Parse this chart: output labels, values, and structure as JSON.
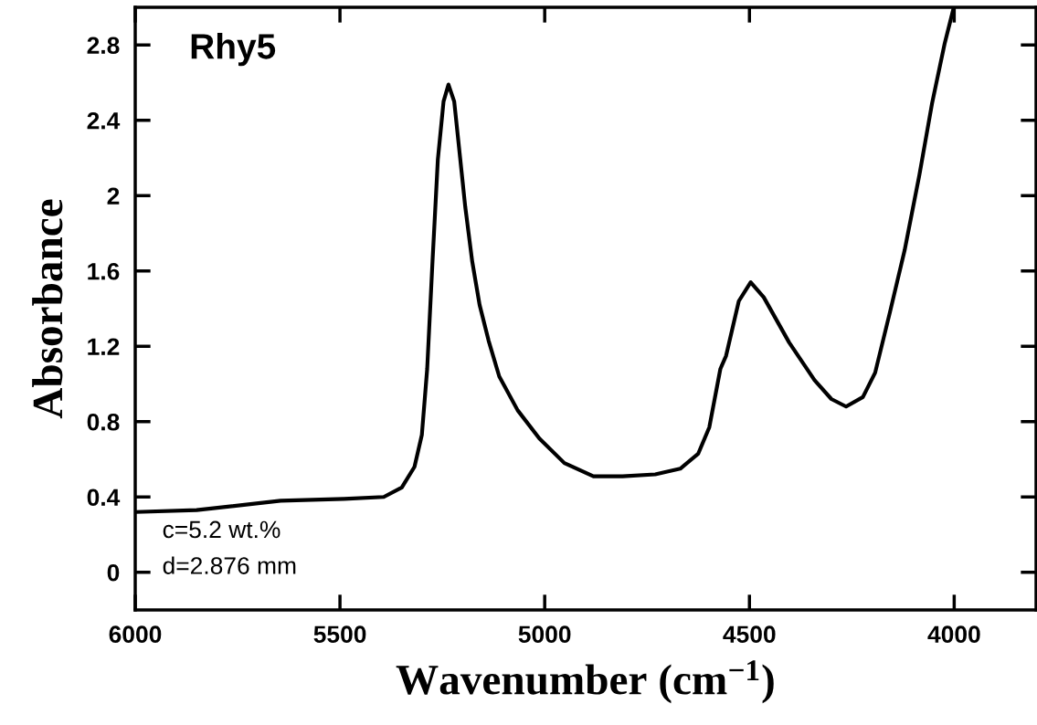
{
  "chart_data": {
    "type": "line",
    "xlabel": "Wavenumber (cm$^{−1}$)",
    "ylabel": "Absorbance",
    "annotations": [
      "Rhy5",
      "c=5.2 wt.%",
      "d=2.876 mm"
    ],
    "xlim": [
      6000,
      3800
    ],
    "xticks": [
      6000,
      5500,
      5000,
      4500,
      4000
    ],
    "ylim": [
      -0.2,
      3.0
    ],
    "yticks": [
      0,
      0.4,
      0.8,
      1.2,
      1.6,
      2,
      2.4,
      2.8
    ],
    "grid": false,
    "marker": "none",
    "line_style": "solid",
    "series": [
      {
        "color": "#000000",
        "x": [
          6000,
          5850,
          5645,
          5490,
          5393,
          5349,
          5318,
          5300,
          5287,
          5274,
          5261,
          5247,
          5235,
          5221,
          5208,
          5194,
          5177,
          5159,
          5137,
          5111,
          5066,
          5013,
          4952,
          4881,
          4810,
          4730,
          4669,
          4625,
          4598,
          4571,
          4557,
          4526,
          4497,
          4465,
          4403,
          4341,
          4300,
          4264,
          4223,
          4193,
          4157,
          4121,
          4085,
          4054,
          4023,
          4001
        ],
        "values": [
          0.32,
          0.33,
          0.38,
          0.39,
          0.4,
          0.45,
          0.56,
          0.73,
          1.08,
          1.65,
          2.19,
          2.5,
          2.59,
          2.5,
          2.23,
          1.94,
          1.65,
          1.42,
          1.23,
          1.04,
          0.86,
          0.71,
          0.58,
          0.51,
          0.51,
          0.52,
          0.55,
          0.63,
          0.77,
          1.08,
          1.15,
          1.44,
          1.54,
          1.46,
          1.22,
          1.02,
          0.92,
          0.88,
          0.93,
          1.06,
          1.38,
          1.71,
          2.11,
          2.49,
          2.81,
          3.0
        ]
      }
    ]
  }
}
